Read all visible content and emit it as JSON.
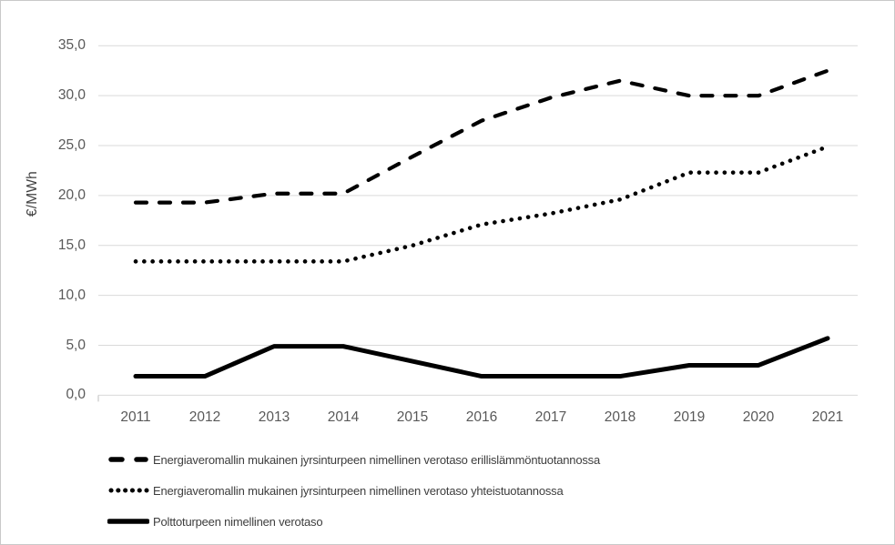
{
  "chart_data": {
    "type": "line",
    "title": "",
    "xlabel": "",
    "ylabel": "€/MWh",
    "categories": [
      "2011",
      "2012",
      "2013",
      "2014",
      "2015",
      "2016",
      "2017",
      "2018",
      "2019",
      "2020",
      "2021"
    ],
    "ylim": [
      0,
      35
    ],
    "ytick_step": 5,
    "ytick_labels": [
      "0,0",
      "5,0",
      "10,0",
      "15,0",
      "20,0",
      "25,0",
      "30,0",
      "35,0"
    ],
    "grid": true,
    "legend_position": "bottom-left",
    "series": [
      {
        "name": "Energiaveromallin mukainen jyrsinturpeen nimellinen verotaso erillislämmöntuotannossa",
        "style": "dashed",
        "values": [
          19.3,
          19.3,
          20.2,
          20.2,
          23.9,
          27.5,
          29.8,
          31.5,
          30.0,
          30.0,
          32.5
        ]
      },
      {
        "name": "Energiaveromallin mukainen jyrsinturpeen nimellinen verotaso yhteistuotannossa",
        "style": "dotted",
        "values": [
          13.4,
          13.4,
          13.4,
          13.4,
          15.0,
          17.1,
          18.2,
          19.6,
          22.3,
          22.3,
          24.9
        ]
      },
      {
        "name": "Polttoturpeen nimellinen verotaso",
        "style": "solid",
        "values": [
          1.9,
          1.9,
          4.9,
          4.9,
          3.4,
          1.9,
          1.9,
          1.9,
          3.0,
          3.0,
          5.7
        ]
      }
    ]
  },
  "colors": {
    "line": "#000000",
    "gridline": "#d9d9d9",
    "axis_tick": "#bfbfbf",
    "axis_text": "#595959",
    "legend_text": "#3d3d3d",
    "border": "#c9c9c9",
    "background": "#ffffff"
  }
}
